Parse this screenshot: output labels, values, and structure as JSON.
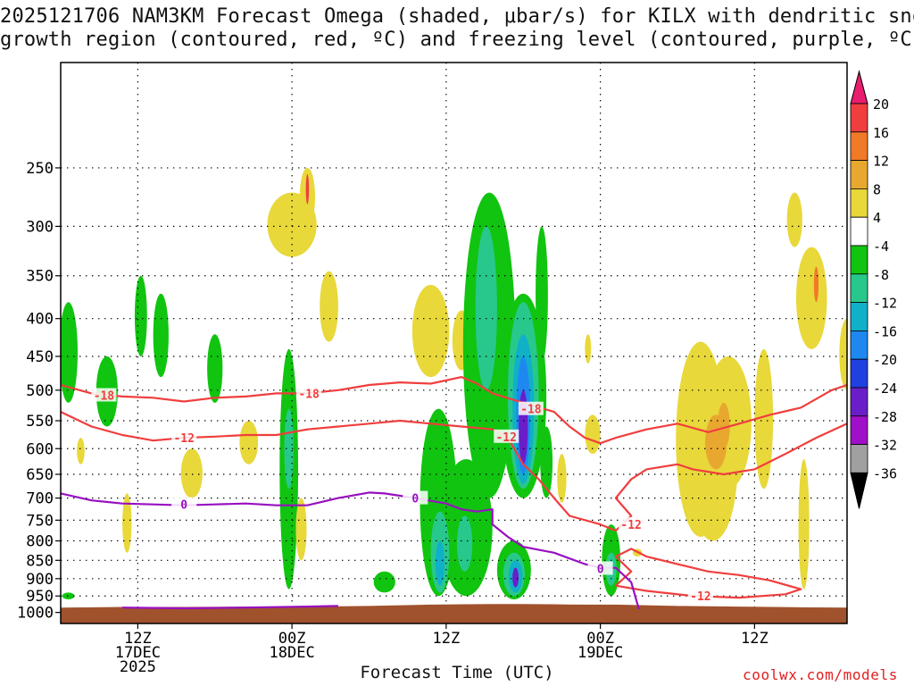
{
  "header": {
    "title_line1": "2025121706 NAM3KM Forecast Omega (shaded, μbar/s) for KILX with dendritic snow",
    "title_line2": "growth region (contoured, red, ºC) and freezing level (contoured, purple, ºC)"
  },
  "footer": {
    "xlabel": "Forecast Time (UTC)",
    "credit": "coolwx.com/models"
  },
  "chart_data": {
    "type": "heatmap",
    "title": "2025121706 NAM3KM Forecast Omega (shaded, μbar/s) for KILX with dendritic snow growth region (contoured, red, ºC) and freezing level (contoured, purple, ºC)",
    "xlabel": "Forecast Time (UTC)",
    "ylabel": "Pressure (hPa)",
    "x_range_hours": [
      6,
      57
    ],
    "y_levels": [
      250,
      300,
      350,
      400,
      450,
      500,
      550,
      600,
      650,
      700,
      750,
      800,
      850,
      900,
      950,
      1000
    ],
    "x_ticks": [
      {
        "hour": 11,
        "line1": "12Z",
        "line2": "17DEC",
        "line3": "2025"
      },
      {
        "hour": 21,
        "line1": "00Z",
        "line2": "18DEC",
        "line3": ""
      },
      {
        "hour": 31,
        "line1": "12Z",
        "line2": "",
        "line3": ""
      },
      {
        "hour": 41,
        "line1": "00Z",
        "line2": "19DEC",
        "line3": ""
      },
      {
        "hour": 51,
        "line1": "12Z",
        "line2": "",
        "line3": ""
      }
    ],
    "colorbar": {
      "labels": [
        "20",
        "16",
        "12",
        "8",
        "4",
        "-4",
        "-8",
        "-12",
        "-16",
        "-20",
        "-24",
        "-28",
        "-32",
        "-36"
      ],
      "colors": [
        "#e81e6e",
        "#f03e3e",
        "#f07a28",
        "#e8a830",
        "#e8d83a",
        "#ffffff",
        "#10c410",
        "#28c88c",
        "#10b0c8",
        "#1e88f0",
        "#2040e0",
        "#6a1ec8",
        "#a010c8",
        "#a0a0a0",
        "#000000"
      ]
    },
    "contours": {
      "dgz_red": [
        {
          "label": "-18",
          "points": [
            [
              6,
              492
            ],
            [
              8,
              505
            ],
            [
              10,
              510
            ],
            [
              12,
              512
            ],
            [
              14,
              518
            ],
            [
              16,
              512
            ],
            [
              18,
              510
            ],
            [
              20,
              505
            ],
            [
              22,
              505
            ],
            [
              24,
              500
            ],
            [
              26,
              492
            ],
            [
              28,
              488
            ],
            [
              30,
              490
            ],
            [
              32,
              480
            ],
            [
              33,
              490
            ],
            [
              34,
              505
            ],
            [
              36,
              520
            ],
            [
              38,
              535
            ],
            [
              39,
              560
            ],
            [
              40,
              580
            ],
            [
              41,
              590
            ],
            [
              42,
              580
            ],
            [
              44,
              565
            ],
            [
              46,
              555
            ],
            [
              48,
              570
            ],
            [
              50,
              555
            ],
            [
              52,
              540
            ],
            [
              54,
              528
            ],
            [
              56,
              500
            ],
            [
              57,
              492
            ]
          ]
        },
        {
          "label": "-12",
          "points": [
            [
              6,
              535
            ],
            [
              8,
              560
            ],
            [
              10,
              575
            ],
            [
              11,
              580
            ],
            [
              12,
              585
            ],
            [
              14,
              580
            ],
            [
              16,
              578
            ],
            [
              18,
              575
            ],
            [
              20,
              575
            ],
            [
              22,
              565
            ],
            [
              24,
              560
            ],
            [
              26,
              555
            ],
            [
              28,
              550
            ],
            [
              30,
              555
            ],
            [
              32,
              560
            ],
            [
              34,
              565
            ],
            [
              35,
              580
            ],
            [
              36,
              630
            ],
            [
              37,
              660
            ],
            [
              38,
              700
            ],
            [
              39,
              740
            ],
            [
              41,
              760
            ],
            [
              42,
              775
            ],
            [
              43,
              740
            ],
            [
              42,
              700
            ],
            [
              43,
              660
            ],
            [
              44,
              640
            ],
            [
              46,
              630
            ],
            [
              47,
              640
            ],
            [
              49,
              650
            ],
            [
              51,
              640
            ],
            [
              53,
              610
            ],
            [
              55,
              580
            ],
            [
              57,
              555
            ]
          ]
        },
        {
          "label": "-12",
          "points": [
            [
              42,
              840
            ],
            [
              43,
              820
            ],
            [
              44,
              840
            ],
            [
              46,
              860
            ],
            [
              48,
              880
            ],
            [
              50,
              890
            ],
            [
              52,
              905
            ],
            [
              54,
              930
            ],
            [
              53,
              945
            ],
            [
              50,
              955
            ],
            [
              47,
              950
            ],
            [
              44,
              935
            ],
            [
              42,
              920
            ],
            [
              43,
              880
            ],
            [
              42,
              840
            ]
          ]
        }
      ],
      "freezing_purple": [
        {
          "label": "0",
          "points": [
            [
              6,
              690
            ],
            [
              8,
              705
            ],
            [
              10,
              712
            ],
            [
              12,
              714
            ],
            [
              14,
              716
            ],
            [
              16,
              714
            ],
            [
              18,
              712
            ],
            [
              20,
              716
            ],
            [
              22,
              716
            ],
            [
              24,
              700
            ],
            [
              26,
              688
            ],
            [
              27,
              690
            ],
            [
              28,
              695
            ],
            [
              29,
              700
            ],
            [
              30,
              706
            ],
            [
              31,
              712
            ],
            [
              32,
              725
            ],
            [
              33,
              730
            ],
            [
              34,
              725
            ],
            [
              34,
              760
            ],
            [
              35,
              790
            ],
            [
              36,
              815
            ],
            [
              38,
              830
            ],
            [
              40,
              860
            ],
            [
              41,
              870
            ],
            [
              42,
              870
            ],
            [
              43,
              910
            ],
            [
              43.5,
              990
            ]
          ]
        },
        {
          "label": "",
          "points": [
            [
              10,
              985
            ],
            [
              14,
              987
            ],
            [
              18,
              985
            ],
            [
              22,
              982
            ],
            [
              24,
              980
            ]
          ]
        }
      ]
    },
    "omega_regions": [
      {
        "level": "4",
        "desc": "weak rising motion near 250-350 hPa around 00Z 18DEC"
      },
      {
        "level": "-8",
        "desc": "sinking motion columns near 12Z 17DEC and 00Z 18DEC"
      },
      {
        "level": "-16",
        "desc": "strong column near 15Z-16Z 18DEC between 400 and 700 hPa"
      },
      {
        "level": "-28",
        "desc": "core near 600 hPa at 16Z 18DEC"
      },
      {
        "level": "8",
        "desc": "rising motion 450-750 hPa around 06Z-09Z 19DEC"
      }
    ]
  }
}
